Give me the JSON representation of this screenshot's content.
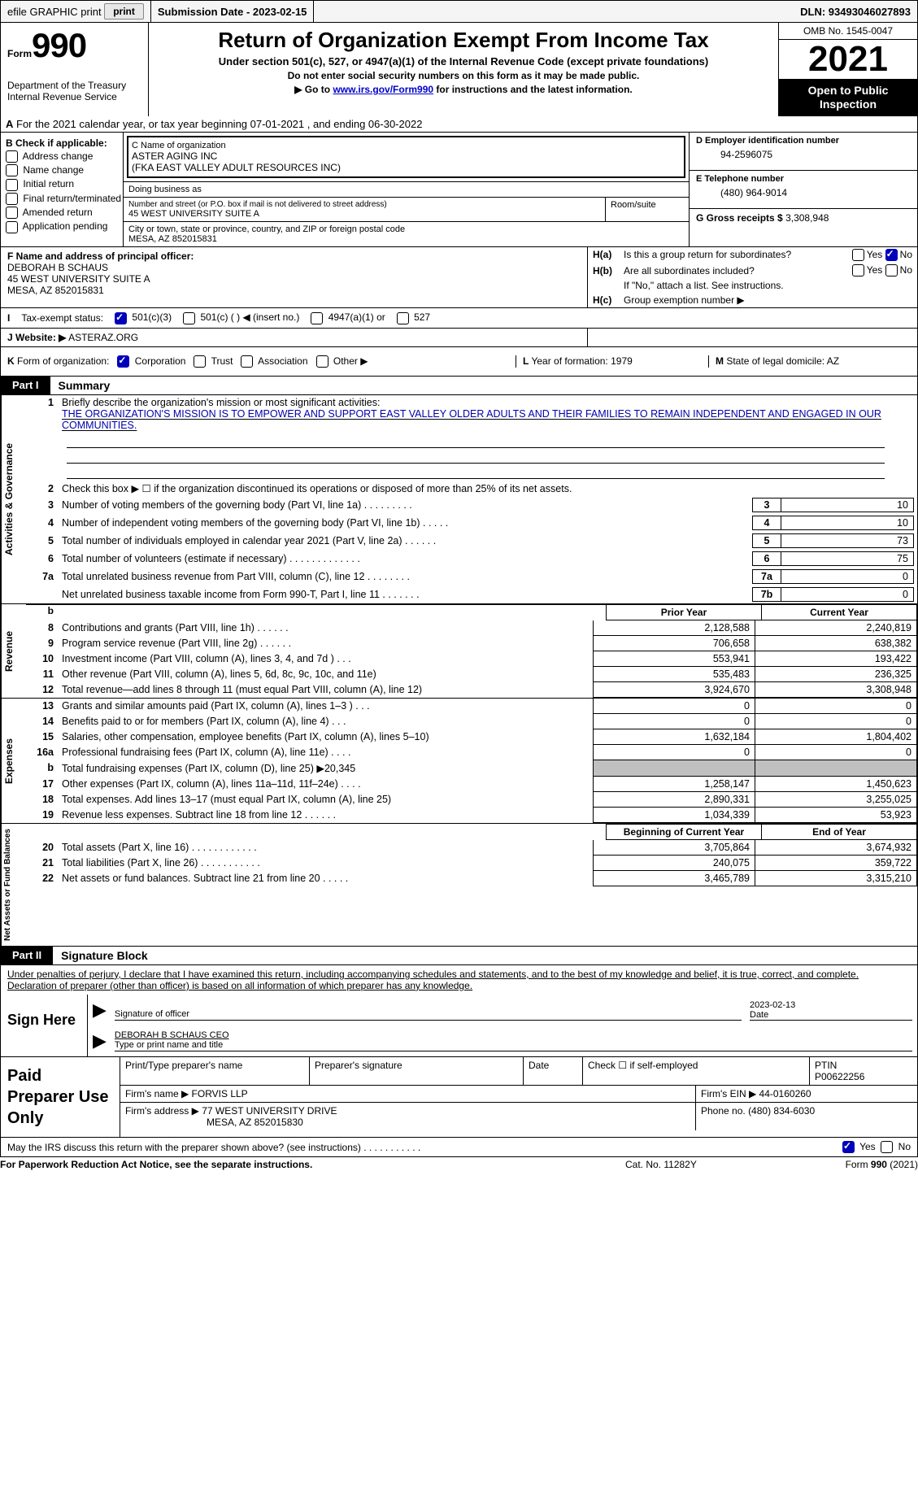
{
  "topbar": {
    "efile": "efile GRAPHIC print",
    "submission": "Submission Date - 2023-02-15",
    "dln": "DLN: 93493046027893"
  },
  "header": {
    "form_label": "Form",
    "form_number": "990",
    "dept": "Department of the Treasury Internal Revenue Service",
    "title": "Return of Organization Exempt From Income Tax",
    "subtitle": "Under section 501(c), 527, or 4947(a)(1) of the Internal Revenue Code (except private foundations)",
    "note1": "Do not enter social security numbers on this form as it may be made public.",
    "note2_pre": "Go to ",
    "note2_link": "www.irs.gov/Form990",
    "note2_post": " for instructions and the latest information.",
    "omb": "OMB No. 1545-0047",
    "year": "2021",
    "open": "Open to Public Inspection"
  },
  "row_a": {
    "text": "For the 2021 calendar year, or tax year beginning 07-01-2021     , and ending 06-30-2022",
    "a": "A"
  },
  "col_b": {
    "header": "B Check if applicable:",
    "items": [
      "Address change",
      "Name change",
      "Initial return",
      "Final return/terminated",
      "Amended return",
      "Application pending"
    ]
  },
  "col_c": {
    "name_lbl": "C Name of organization",
    "name": "ASTER AGING INC",
    "fka": "(FKA EAST VALLEY ADULT RESOURCES INC)",
    "dba_lbl": "Doing business as",
    "addr_lbl": "Number and street (or P.O. box if mail is not delivered to street address)",
    "addr": "45 WEST UNIVERSITY SUITE A",
    "room_lbl": "Room/suite",
    "city_lbl": "City or town, state or province, country, and ZIP or foreign postal code",
    "city": "MESA, AZ  852015831"
  },
  "col_d": {
    "ein_lbl": "D Employer identification number",
    "ein": "94-2596075",
    "tel_lbl": "E Telephone number",
    "tel": "(480) 964-9014",
    "gross_lbl": "G Gross receipts $",
    "gross": "3,308,948"
  },
  "row_f": {
    "lbl": "F Name and address of principal officer:",
    "name": "DEBORAH B SCHAUS",
    "addr": "45 WEST UNIVERSITY SUITE A",
    "city": "MESA, AZ  852015831"
  },
  "row_h": {
    "ha_lbl": "H(a)",
    "ha_text": "Is this a group return for subordinates?",
    "hb_lbl": "H(b)",
    "hb_text": "Are all subordinates included?",
    "hb_note": "If \"No,\" attach a list. See instructions.",
    "hc_lbl": "H(c)",
    "hc_text": "Group exemption number ▶",
    "yes": "Yes",
    "no": "No"
  },
  "row_i": {
    "lbl": "I",
    "text": "Tax-exempt status:",
    "opts": [
      "501(c)(3)",
      "501(c) (   ) ◀ (insert no.)",
      "4947(a)(1) or",
      "527"
    ]
  },
  "row_j": {
    "lbl": "J",
    "text": "Website: ▶",
    "val": "ASTERAZ.ORG"
  },
  "row_k": {
    "lbl": "K",
    "text": "Form of organization:",
    "opts": [
      "Corporation",
      "Trust",
      "Association",
      "Other ▶"
    ]
  },
  "row_l": {
    "lbl": "L",
    "text": "Year of formation:",
    "val": "1979"
  },
  "row_m": {
    "lbl": "M",
    "text": "State of legal domicile:",
    "val": "AZ"
  },
  "part1": {
    "num": "Part I",
    "title": "Summary",
    "side1": "Activities & Governance",
    "side2": "Revenue",
    "side3": "Expenses",
    "side4": "Net Assets or Fund Balances",
    "line1_lbl": "1",
    "line1_text": "Briefly describe the organization's mission or most significant activities:",
    "mission": "THE ORGANIZATION'S MISSION IS TO EMPOWER AND SUPPORT EAST VALLEY OLDER ADULTS AND THEIR FAMILIES TO REMAIN INDEPENDENT AND ENGAGED IN OUR COMMUNITIES.",
    "line2_lbl": "2",
    "line2_text": "Check this box ▶ ☐ if the organization discontinued its operations or disposed of more than 25% of its net assets.",
    "lines_gov": [
      {
        "n": "3",
        "t": "Number of voting members of the governing body (Part VI, line 1a)   .    .    .    .    .    .    .    .    .",
        "b": "3",
        "v": "10"
      },
      {
        "n": "4",
        "t": "Number of independent voting members of the governing body (Part VI, line 1b)   .    .    .    .    .",
        "b": "4",
        "v": "10"
      },
      {
        "n": "5",
        "t": "Total number of individuals employed in calendar year 2021 (Part V, line 2a)   .    .    .    .    .    .",
        "b": "5",
        "v": "73"
      },
      {
        "n": "6",
        "t": "Total number of volunteers (estimate if necessary)    .    .    .    .    .    .    .    .    .    .    .    .    .",
        "b": "6",
        "v": "75"
      },
      {
        "n": "7a",
        "t": "Total unrelated business revenue from Part VIII, column (C), line 12    .    .    .    .    .    .    .    .",
        "b": "7a",
        "v": "0"
      },
      {
        "n": "",
        "t": "Net unrelated business taxable income from Form 990-T, Part I, line 11   .    .    .    .    .    .    .",
        "b": "7b",
        "v": "0"
      }
    ],
    "prior": "Prior Year",
    "current": "Current Year",
    "rev": [
      {
        "n": "8",
        "t": "Contributions and grants (Part VIII, line 1h)   .    .    .    .    .    .",
        "p": "2,128,588",
        "c": "2,240,819"
      },
      {
        "n": "9",
        "t": "Program service revenue (Part VIII, line 2g)   .    .    .    .    .    .",
        "p": "706,658",
        "c": "638,382"
      },
      {
        "n": "10",
        "t": "Investment income (Part VIII, column (A), lines 3, 4, and 7d )   .    .    .",
        "p": "553,941",
        "c": "193,422"
      },
      {
        "n": "11",
        "t": "Other revenue (Part VIII, column (A), lines 5, 6d, 8c, 9c, 10c, and 11e)",
        "p": "535,483",
        "c": "236,325"
      },
      {
        "n": "12",
        "t": "Total revenue—add lines 8 through 11 (must equal Part VIII, column (A), line 12)",
        "p": "3,924,670",
        "c": "3,308,948"
      }
    ],
    "exp": [
      {
        "n": "13",
        "t": "Grants and similar amounts paid (Part IX, column (A), lines 1–3 )    .    .    .",
        "p": "0",
        "c": "0"
      },
      {
        "n": "14",
        "t": "Benefits paid to or for members (Part IX, column (A), line 4)   .    .    .",
        "p": "0",
        "c": "0"
      },
      {
        "n": "15",
        "t": "Salaries, other compensation, employee benefits (Part IX, column (A), lines 5–10)",
        "p": "1,632,184",
        "c": "1,804,402"
      },
      {
        "n": "16a",
        "t": "Professional fundraising fees (Part IX, column (A), line 11e)   .    .    .    .",
        "p": "0",
        "c": "0"
      },
      {
        "n": "b",
        "t": "Total fundraising expenses (Part IX, column (D), line 25) ▶20,345",
        "p": "grey",
        "c": "grey"
      },
      {
        "n": "17",
        "t": "Other expenses (Part IX, column (A), lines 11a–11d, 11f–24e)   .    .    .    .",
        "p": "1,258,147",
        "c": "1,450,623"
      },
      {
        "n": "18",
        "t": "Total expenses. Add lines 13–17 (must equal Part IX, column (A), line 25)",
        "p": "2,890,331",
        "c": "3,255,025"
      },
      {
        "n": "19",
        "t": "Revenue less expenses. Subtract line 18 from line 12   .    .    .    .    .    .",
        "p": "1,034,339",
        "c": "53,923"
      }
    ],
    "begin": "Beginning of Current Year",
    "end": "End of Year",
    "net": [
      {
        "n": "20",
        "t": "Total assets (Part X, line 16)   .    .    .    .    .    .    .    .    .    .    .    .",
        "p": "3,705,864",
        "c": "3,674,932"
      },
      {
        "n": "21",
        "t": "Total liabilities (Part X, line 26)   .    .    .    .    .    .    .    .    .    .    .",
        "p": "240,075",
        "c": "359,722"
      },
      {
        "n": "22",
        "t": "Net assets or fund balances. Subtract line 21 from line 20   .    .    .    .    .",
        "p": "3,465,789",
        "c": "3,315,210"
      }
    ]
  },
  "part2": {
    "num": "Part II",
    "title": "Signature Block",
    "text": "Under penalties of perjury, I declare that I have examined this return, including accompanying schedules and statements, and to the best of my knowledge and belief, it is true, correct, and complete. Declaration of preparer (other than officer) is based on all information of which preparer has any knowledge.",
    "sign_here": "Sign Here",
    "sig_officer": "Signature of officer",
    "sig_date": "2023-02-13",
    "date_lbl": "Date",
    "name_title": "DEBORAH B SCHAUS  CEO",
    "type_name": "Type or print name and title"
  },
  "prep": {
    "lbl": "Paid Preparer Use Only",
    "print_name": "Print/Type preparer's name",
    "sig": "Preparer's signature",
    "date": "Date",
    "check_self": "Check ☐ if self-employed",
    "ptin_lbl": "PTIN",
    "ptin": "P00622256",
    "firm_name_lbl": "Firm's name    ▶",
    "firm_name": "FORVIS LLP",
    "firm_ein_lbl": "Firm's EIN ▶",
    "firm_ein": "44-0160260",
    "firm_addr_lbl": "Firm's address ▶",
    "firm_addr": "77 WEST UNIVERSITY DRIVE",
    "firm_city": "MESA, AZ  852015830",
    "phone_lbl": "Phone no.",
    "phone": "(480) 834-6030"
  },
  "discuss": "May the IRS discuss this return with the preparer shown above? (see instructions)   .    .    .    .    .    .    .    .    .    .    .",
  "footer": {
    "left": "For Paperwork Reduction Act Notice, see the separate instructions.",
    "mid": "Cat. No. 11282Y",
    "right": "Form 990 (2021)"
  }
}
